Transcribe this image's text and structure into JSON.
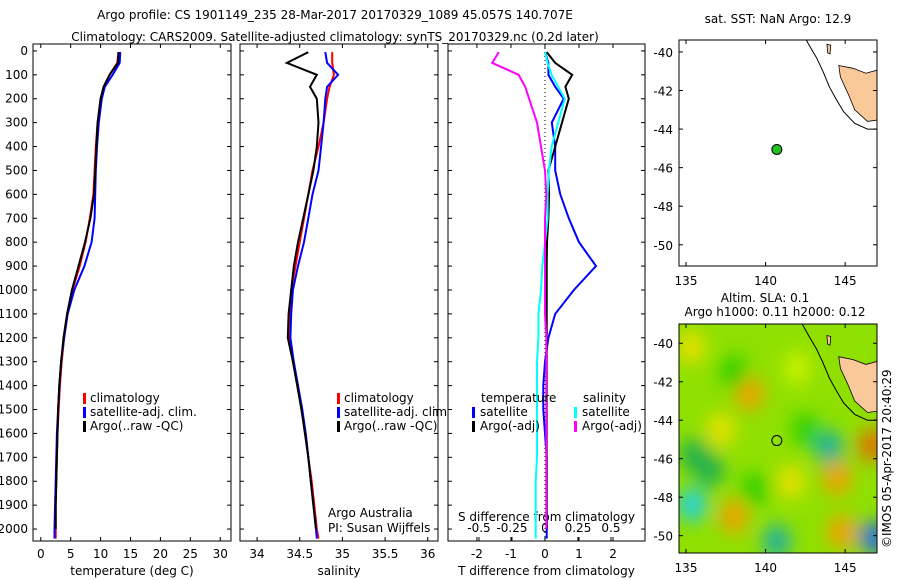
{
  "title": {
    "line1": "Argo profile: CS 1901149_235 28-Mar-2017 20170329_1089 45.057S 140.707E",
    "line2": "Climatology: CARS2009. Satellite-adjusted climatology: synTS_20170329.nc (0.2d later)"
  },
  "credit": "©IMOS 05-Apr-2017 20:40:29",
  "annotation": {
    "line1": "Argo Australia",
    "line2": "PI: Susan Wijffels"
  },
  "colors": {
    "climatology": "#ff0000",
    "satellite": "#0000ff",
    "argo": "#000000",
    "sal_satellite": "#00ffff",
    "sal_argo": "#ff00ff",
    "land": "#f9c99a"
  },
  "chart_data": [
    {
      "type": "line",
      "id": "temperature",
      "xlabel": "temperature (deg C)",
      "ylabel": "",
      "xlim": [
        -1.3,
        31.8
      ],
      "ylim": [
        2050,
        -29
      ],
      "xticks": [
        "0",
        "5",
        "10",
        "15",
        "20",
        "25",
        "30"
      ],
      "xtick_values": [
        0,
        5,
        10,
        15,
        20,
        25,
        30
      ],
      "yticks": [
        "0",
        "100",
        "200",
        "300",
        "400",
        "500",
        "600",
        "700",
        "800",
        "900",
        "1000",
        "1100",
        "1200",
        "1300",
        "1400",
        "1500",
        "1600",
        "1700",
        "1800",
        "1900",
        "2000"
      ],
      "depth": [
        5,
        50,
        100,
        150,
        200,
        300,
        400,
        500,
        600,
        700,
        800,
        900,
        1000,
        1100,
        1200,
        1300,
        1400,
        1500,
        1600,
        1700,
        1800,
        1900,
        2000,
        2040
      ],
      "series": [
        {
          "name": "climatology",
          "color": "#ff0000",
          "values": [
            13,
            12.8,
            11.5,
            10.5,
            10,
            9.5,
            9.2,
            9,
            8.8,
            8.2,
            7.5,
            6.5,
            5.3,
            4.4,
            3.9,
            3.5,
            3.2,
            3,
            2.8,
            2.7,
            2.6,
            2.5,
            2.5,
            2.5
          ]
        },
        {
          "name": "satellite-adj. clim.",
          "color": "#0000ff",
          "values": [
            13.3,
            13.2,
            12,
            10.7,
            10.2,
            9.7,
            9.4,
            9.2,
            9.1,
            9,
            8.5,
            7.3,
            5.6,
            4.5,
            3.9,
            3.4,
            3.1,
            2.9,
            2.7,
            2.6,
            2.5,
            2.4,
            2.3,
            2.3
          ]
        },
        {
          "name": "Argo(..raw -QC)",
          "color": "#000000",
          "values": [
            13,
            12.9,
            11.5,
            10.5,
            10,
            9.5,
            9.3,
            9.1,
            8.9,
            8.3,
            7.4,
            6.3,
            5.2,
            4.4,
            3.8,
            3.4,
            3.1,
            2.9,
            2.8,
            2.7,
            2.6,
            2.5,
            2.5,
            null
          ]
        }
      ],
      "legend": "lower-center"
    },
    {
      "type": "line",
      "id": "salinity",
      "xlabel": "salinity",
      "xlim": [
        33.8,
        36.12
      ],
      "ylim": [
        2050,
        -29
      ],
      "xticks": [
        "34",
        "34.5",
        "35",
        "35.5",
        "36"
      ],
      "xtick_values": [
        34,
        34.5,
        35,
        35.5,
        36
      ],
      "depth": [
        5,
        50,
        100,
        150,
        200,
        300,
        400,
        500,
        600,
        700,
        800,
        900,
        1000,
        1100,
        1200,
        1300,
        1400,
        1500,
        1600,
        1700,
        1800,
        1900,
        2000,
        2040
      ],
      "series": [
        {
          "name": "climatology",
          "color": "#ff0000",
          "values": [
            34.88,
            34.88,
            34.9,
            34.85,
            34.82,
            34.78,
            34.72,
            34.65,
            34.6,
            34.55,
            34.5,
            34.45,
            34.4,
            34.38,
            34.38,
            34.42,
            34.48,
            34.52,
            34.57,
            34.6,
            34.64,
            34.67,
            34.7,
            34.72
          ]
        },
        {
          "name": "satellite-adj. clim.",
          "color": "#0000ff",
          "values": [
            34.8,
            34.82,
            34.95,
            34.82,
            34.8,
            34.78,
            34.75,
            34.72,
            34.65,
            34.6,
            34.55,
            34.48,
            34.42,
            34.4,
            34.39,
            34.43,
            34.48,
            34.53,
            34.57,
            34.6,
            34.63,
            34.66,
            34.69,
            34.7
          ]
        },
        {
          "name": "Argo(..raw -QC)",
          "color": "#000000",
          "values": [
            34.6,
            34.35,
            34.7,
            34.62,
            34.7,
            34.72,
            34.7,
            34.66,
            34.6,
            34.54,
            34.48,
            34.43,
            34.4,
            34.37,
            34.36,
            34.42,
            34.47,
            34.52,
            34.56,
            34.6,
            34.63,
            34.66,
            34.69,
            null
          ]
        }
      ],
      "legend": "lower-center"
    },
    {
      "type": "line",
      "id": "difference",
      "xlabel": "T difference from climatology",
      "x2label": "S difference from climatology",
      "xlim": [
        -2.85,
        2.94
      ],
      "x2lim": [
        -0.5,
        0.5
      ],
      "ylim": [
        2050,
        -29
      ],
      "xticks": [
        "-2",
        "-1",
        "0",
        "1",
        "2"
      ],
      "xtick_values": [
        -2,
        -1,
        0,
        1,
        2
      ],
      "x2ticks": [
        "-0.5",
        "-0.25",
        "0",
        "0.25",
        "0.5"
      ],
      "x2tick_values": [
        -0.5,
        -0.25,
        0,
        0.25,
        0.5
      ],
      "depth": [
        5,
        50,
        100,
        150,
        200,
        300,
        400,
        500,
        600,
        700,
        800,
        900,
        1000,
        1100,
        1200,
        1300,
        1400,
        1500,
        1600,
        1700,
        1800,
        1900,
        2000,
        2040
      ],
      "legend_headers": [
        "temperature",
        "salinity"
      ],
      "series": [
        {
          "name": "satellite",
          "group": "temperature",
          "axis": "T",
          "color": "#0000ff",
          "values": [
            0,
            0.1,
            0.1,
            0.3,
            0.55,
            0.2,
            0.3,
            0.3,
            0.45,
            0.7,
            1.0,
            1.5,
            0.85,
            0.3,
            0.1,
            0,
            -0.05,
            -0.05,
            0,
            0.05,
            0.05,
            0.05,
            0.05,
            0.05
          ]
        },
        {
          "name": "Argo(-adj)",
          "group": "temperature",
          "axis": "T",
          "color": "#000000",
          "values": [
            0.05,
            0.3,
            0.8,
            0.6,
            0.7,
            0.5,
            0.3,
            0.1,
            0.12,
            0.1,
            0.06,
            0.05,
            0.05,
            0.05,
            0.05,
            0.05,
            0.05,
            0.05,
            0.05,
            0.05,
            0.05,
            0.05,
            0.05,
            null
          ]
        },
        {
          "name": "satellite",
          "group": "salinity",
          "axis": "S",
          "color": "#00ffff",
          "values": [
            0,
            0.02,
            0.05,
            0.1,
            0.15,
            0.1,
            0.05,
            0.03,
            0.02,
            0.02,
            0,
            -0.02,
            -0.03,
            -0.05,
            -0.05,
            -0.06,
            -0.06,
            -0.06,
            -0.06,
            -0.06,
            -0.07,
            -0.07,
            -0.07,
            -0.07
          ]
        },
        {
          "name": "Argo(-adj)",
          "group": "salinity",
          "axis": "S",
          "color": "#ff00ff",
          "values": [
            -0.35,
            -0.4,
            -0.2,
            -0.15,
            -0.12,
            -0.06,
            -0.03,
            0,
            0.01,
            0,
            0,
            0,
            0,
            0,
            0.01,
            0.01,
            0.01,
            0.01,
            0.01,
            0.01,
            0.01,
            0.01,
            0.01,
            null
          ]
        }
      ]
    },
    {
      "type": "map",
      "id": "sst-map",
      "title": "sat. SST: NaN Argo: 12.9",
      "xlim": [
        134.56,
        147.0
      ],
      "ylim": [
        -51.1,
        -39.38
      ],
      "xticks": [
        "135",
        "140",
        "145"
      ],
      "xtick_values": [
        135,
        140,
        145
      ],
      "yticks": [
        "-40",
        "-42",
        "-44",
        "-46",
        "-48",
        "-50"
      ],
      "ytick_values": [
        -40,
        -42,
        -44,
        -46,
        -48,
        -50
      ],
      "float_position": [
        140.707,
        -45.057
      ]
    },
    {
      "type": "heatmap",
      "id": "sla-map",
      "title_line1": "Altim. SLA: 0.1",
      "title_line2": "Argo h1000: 0.11 h2000: 0.12",
      "xlim": [
        134.56,
        147.0
      ],
      "ylim": [
        -50.9,
        -39.0
      ],
      "xticks": [
        "135",
        "140",
        "145"
      ],
      "xtick_values": [
        135,
        140,
        145
      ],
      "yticks": [
        "-40",
        "-42",
        "-44",
        "-46",
        "-48",
        "-50"
      ],
      "ytick_values": [
        -40,
        -42,
        -44,
        -46,
        -48,
        -50
      ],
      "float_position": [
        140.707,
        -45.057
      ],
      "sla_features": [
        {
          "lon": 139.0,
          "lat": -42.6,
          "value": 0.25
        },
        {
          "lon": 137.2,
          "lat": -44.5,
          "value": 0.12
        },
        {
          "lon": 146.7,
          "lat": -45.3,
          "value": 0.3
        },
        {
          "lon": 144.5,
          "lat": -47.0,
          "value": 0.2
        },
        {
          "lon": 138.0,
          "lat": -49.0,
          "value": 0.25
        },
        {
          "lon": 144.8,
          "lat": -49.8,
          "value": 0.22
        },
        {
          "lon": 141.6,
          "lat": -47.2,
          "value": 0.12
        },
        {
          "lon": 135.4,
          "lat": -48.4,
          "value": -0.3
        },
        {
          "lon": 136.5,
          "lat": -46.6,
          "value": -0.18
        },
        {
          "lon": 146.8,
          "lat": -50.1,
          "value": -0.4
        },
        {
          "lon": 144.0,
          "lat": -45.4,
          "value": -0.22
        },
        {
          "lon": 140.7,
          "lat": -50.3,
          "value": -0.2
        },
        {
          "lon": 139.3,
          "lat": -47.6,
          "value": -0.05
        },
        {
          "lon": 135.5,
          "lat": -45.8,
          "value": -0.1
        },
        {
          "lon": 138.0,
          "lat": -41.5,
          "value": -0.08
        },
        {
          "lon": 142.5,
          "lat": -44.5,
          "value": -0.05
        },
        {
          "lon": 135.3,
          "lat": -40.2,
          "value": 0.1
        },
        {
          "lon": 142.0,
          "lat": -41.3,
          "value": 0.08
        }
      ]
    }
  ],
  "land": {
    "tasmania": [
      [
        144.6,
        -40.7
      ],
      [
        145.5,
        -40.85
      ],
      [
        146.3,
        -41.1
      ],
      [
        147.2,
        -40.9
      ],
      [
        148.3,
        -40.8
      ],
      [
        148.4,
        -42.0
      ],
      [
        148.0,
        -42.9
      ],
      [
        147.3,
        -43.5
      ],
      [
        146.4,
        -43.6
      ],
      [
        145.6,
        -43.0
      ],
      [
        145.2,
        -42.2
      ],
      [
        144.7,
        -41.3
      ]
    ],
    "king_island": [
      [
        143.85,
        -39.6
      ],
      [
        144.1,
        -39.65
      ],
      [
        144.05,
        -40.1
      ],
      [
        143.9,
        -40.05
      ]
    ],
    "isobath": [
      [
        142.3,
        -39.0
      ],
      [
        142.7,
        -39.6
      ],
      [
        143.2,
        -40.3
      ],
      [
        143.6,
        -41.0
      ],
      [
        144.0,
        -41.8
      ],
      [
        144.4,
        -42.4
      ],
      [
        144.9,
        -43.1
      ],
      [
        145.6,
        -43.7
      ],
      [
        146.4,
        -44.0
      ],
      [
        147.3,
        -44.0
      ],
      [
        148.0,
        -43.6
      ]
    ]
  }
}
